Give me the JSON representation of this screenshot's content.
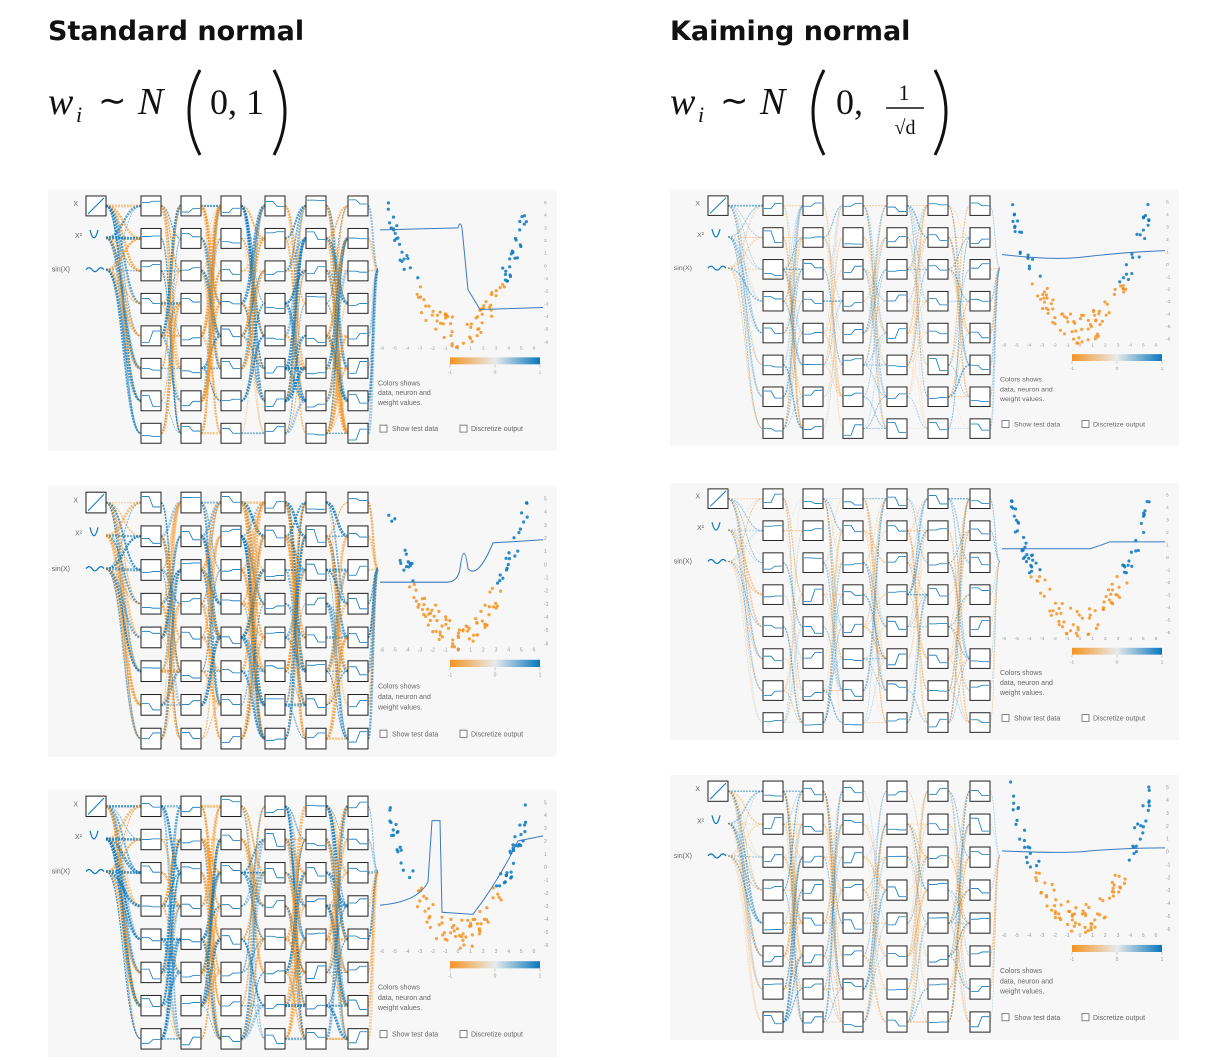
{
  "columns": [
    {
      "title": "Standard normal",
      "formula": {
        "lhs": "w",
        "sub": "i",
        "rel": "∼",
        "dist": "N",
        "args": "0, 1"
      }
    },
    {
      "title": "Kaiming normal",
      "formula": {
        "lhs": "w",
        "sub": "i",
        "rel": "∼",
        "dist": "N",
        "mean": "0,",
        "num": "1",
        "den": "√d"
      }
    }
  ],
  "panel": {
    "inputs": [
      "X",
      "X²",
      "sin(X)"
    ],
    "x_ticks": [
      -6,
      -5,
      -4,
      -3,
      -2,
      -1,
      0,
      1,
      2,
      3,
      4,
      5,
      6
    ],
    "y_ticks": [
      5,
      4,
      3,
      2,
      1,
      0,
      -1,
      -2,
      -3,
      -4,
      -5,
      -6
    ],
    "legend": [
      "Colors shows",
      "data, neuron and",
      "weight values."
    ],
    "colorbar_ticks": [
      -1,
      0,
      1
    ],
    "checkboxes": [
      "Show test data",
      "Discretize output"
    ]
  }
}
